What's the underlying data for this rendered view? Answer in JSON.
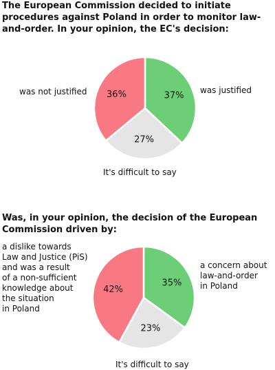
{
  "colors": {
    "justified": "#6ccf77",
    "not_justified": "#f87983",
    "difficult": "#e5e5e5",
    "stroke": "#ffffff"
  },
  "chart_data": [
    {
      "type": "pie",
      "title": "The European Commission decided to initiate procedures against Poland in order to monitor law-and-order. In your opinion, the EC's decision:",
      "slices": [
        {
          "label": "was justified",
          "value": 37,
          "value_label": "37%",
          "color": "#6ccf77"
        },
        {
          "label": "It's difficult to say",
          "value": 27,
          "value_label": "27%",
          "color": "#e5e5e5"
        },
        {
          "label": "was not justified",
          "value": 36,
          "value_label": "36%",
          "color": "#f87983"
        }
      ]
    },
    {
      "type": "pie",
      "title": "Was, in your opinion, the decision of the European Commission driven by:",
      "slices": [
        {
          "label": "a concern about\nlaw-and-order\nin Poland",
          "value": 35,
          "value_label": "35%",
          "color": "#6ccf77"
        },
        {
          "label": "It's difficult to say",
          "value": 23,
          "value_label": "23%",
          "color": "#e5e5e5"
        },
        {
          "label": "a dislike towards\nLaw and Justice (PiS)\nand was a result\nof a non-sufficient\nknowledge about\nthe situation\nin Poland",
          "value": 42,
          "value_label": "42%",
          "color": "#f87983"
        }
      ]
    }
  ]
}
